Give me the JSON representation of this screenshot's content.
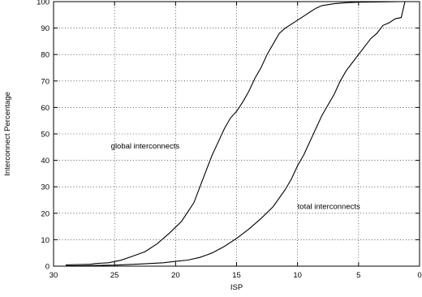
{
  "chart_data": {
    "type": "line",
    "xlabel": "ISP",
    "ylabel": "Interconnect Percentage",
    "xlim": [
      30,
      0
    ],
    "ylim": [
      0,
      100
    ],
    "x_reversed": true,
    "grid": true,
    "xticks": [
      30,
      25,
      20,
      15,
      10,
      5,
      0
    ],
    "yticks": [
      0,
      10,
      20,
      30,
      40,
      50,
      60,
      70,
      80,
      90,
      100
    ],
    "series": [
      {
        "points": [
          [
            29,
            0.5
          ],
          [
            28,
            0.6
          ],
          [
            27,
            0.7
          ],
          [
            26.5,
            1.0
          ],
          [
            25.5,
            1.3
          ],
          [
            24.5,
            2.2
          ],
          [
            23.5,
            3.8
          ],
          [
            22.5,
            5.5
          ],
          [
            21.5,
            8.5
          ],
          [
            20.5,
            12.5
          ],
          [
            19.5,
            17
          ],
          [
            18.5,
            24
          ],
          [
            17.5,
            36
          ],
          [
            17,
            42
          ],
          [
            16.5,
            47
          ],
          [
            16,
            52
          ],
          [
            15.5,
            56
          ],
          [
            15,
            58.5
          ],
          [
            14.5,
            62
          ],
          [
            14,
            66
          ],
          [
            13.5,
            71
          ],
          [
            13,
            75
          ],
          [
            12.5,
            80
          ],
          [
            12,
            84
          ],
          [
            11.5,
            88
          ],
          [
            11,
            90
          ],
          [
            10.5,
            91.5
          ],
          [
            10,
            93
          ],
          [
            9.5,
            94.5
          ],
          [
            9,
            96
          ],
          [
            8.5,
            97.5
          ],
          [
            8,
            98.5
          ],
          [
            7,
            99.2
          ],
          [
            6,
            99.6
          ],
          [
            5,
            99.8
          ],
          [
            3,
            99.9
          ],
          [
            1.5,
            100
          ],
          [
            0.5,
            100
          ]
        ]
      },
      {
        "points": [
          [
            29,
            0.1
          ],
          [
            27,
            0.2
          ],
          [
            25,
            0.4
          ],
          [
            23,
            0.8
          ],
          [
            21,
            1.3
          ],
          [
            20,
            1.8
          ],
          [
            19,
            2.3
          ],
          [
            18,
            3.3
          ],
          [
            17,
            5
          ],
          [
            16,
            7.5
          ],
          [
            15,
            10.5
          ],
          [
            14,
            14
          ],
          [
            13,
            18
          ],
          [
            12,
            22.5
          ],
          [
            11,
            29
          ],
          [
            10.5,
            33
          ],
          [
            10,
            38
          ],
          [
            9.5,
            42
          ],
          [
            9,
            47
          ],
          [
            8.5,
            52
          ],
          [
            8,
            57
          ],
          [
            7.5,
            61
          ],
          [
            7,
            65
          ],
          [
            6.5,
            70
          ],
          [
            6,
            74
          ],
          [
            5.5,
            77
          ],
          [
            5,
            80
          ],
          [
            4.5,
            83
          ],
          [
            4,
            86
          ],
          [
            3.5,
            88
          ],
          [
            3,
            91
          ],
          [
            2.5,
            92
          ],
          [
            2,
            93.5
          ],
          [
            1.5,
            94
          ],
          [
            1.2,
            100
          ],
          [
            0.8,
            100
          ]
        ]
      }
    ],
    "annotations": [
      {
        "text": "global interconnects",
        "x": 25.3,
        "y": 44.5
      },
      {
        "text": "total interconnects",
        "x": 10,
        "y": 21.7
      }
    ]
  }
}
